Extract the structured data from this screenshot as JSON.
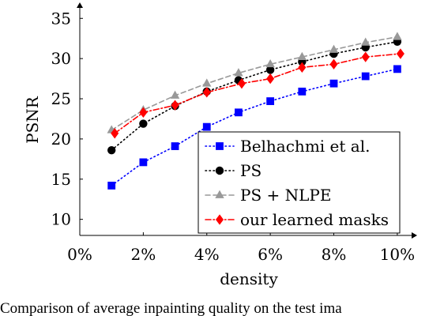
{
  "chart_data": {
    "type": "line",
    "xlabel": "density",
    "ylabel": "PSNR",
    "xlim": [
      0,
      10.6
    ],
    "ylim": [
      8,
      36.5
    ],
    "x_ticks": [
      0,
      2,
      4,
      6,
      8,
      10
    ],
    "x_tick_labels": [
      "0%",
      "2%",
      "4%",
      "6%",
      "8%",
      "10%"
    ],
    "y_ticks": [
      10,
      15,
      20,
      25,
      30,
      35
    ],
    "y_tick_labels": [
      "10",
      "15",
      "20",
      "25",
      "30",
      "35"
    ],
    "grid": false,
    "legend_position": "bottom-right",
    "series": [
      {
        "name": "Belhachmi et al.",
        "color": "#0000ff",
        "marker": "square",
        "dash": "dotted",
        "x": [
          1,
          2,
          3,
          4,
          5,
          6,
          7,
          8,
          9,
          10
        ],
        "values": [
          14.2,
          17.1,
          19.1,
          21.5,
          23.3,
          24.7,
          25.9,
          26.9,
          27.8,
          28.7
        ]
      },
      {
        "name": "PS",
        "color": "#000000",
        "marker": "circle",
        "dash": "dotted",
        "x": [
          1,
          2,
          3,
          4,
          5,
          6,
          7,
          8,
          9,
          10
        ],
        "values": [
          18.6,
          21.9,
          24.1,
          25.9,
          27.3,
          28.6,
          29.6,
          30.6,
          31.4,
          32.1
        ]
      },
      {
        "name": "PS + NLPE",
        "color": "#999999",
        "marker": "triangle",
        "dash": "dashed",
        "x": [
          1,
          2,
          3,
          4,
          5,
          6,
          7,
          8,
          9,
          10
        ],
        "values": [
          21.1,
          23.6,
          25.4,
          26.9,
          28.2,
          29.3,
          30.2,
          31.1,
          32.0,
          32.7
        ]
      },
      {
        "name": "our learned masks",
        "color": "#ff0000",
        "marker": "diamond",
        "dash": "dashdot",
        "x": [
          1.1,
          2.0,
          3.0,
          4.0,
          5.1,
          6.0,
          7.0,
          8.0,
          9.0,
          10.1
        ],
        "values": [
          20.7,
          23.3,
          24.2,
          25.8,
          26.9,
          27.5,
          28.9,
          29.3,
          30.2,
          30.6
        ]
      }
    ]
  },
  "caption": "Comparison of average inpainting quality on the test ima"
}
